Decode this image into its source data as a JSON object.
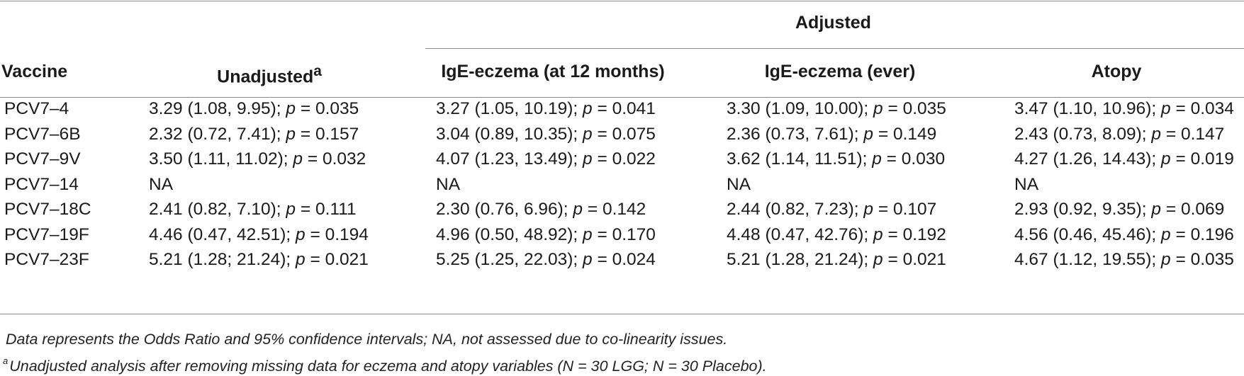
{
  "table": {
    "group_header": "Adjusted",
    "columns": {
      "vaccine": "Vaccine",
      "unadjusted": "Unadjusted",
      "unadjusted_marker": "a",
      "ige_12m": "IgE-eczema (at 12 months)",
      "ige_ever": "IgE-eczema (ever)",
      "atopy": "Atopy"
    },
    "rows": [
      {
        "vaccine": "PCV7–4",
        "unadjusted": {
          "ci": "3.29 (1.08, 9.95); ",
          "p": "p",
          "pval": " = 0.035"
        },
        "ige_12m": {
          "ci": "3.27 (1.05, 10.19); ",
          "p": "p",
          "pval": " = 0.041"
        },
        "ige_ever": {
          "ci": "3.30 (1.09, 10.00); ",
          "p": "p",
          "pval": " = 0.035"
        },
        "atopy": {
          "ci": "3.47 (1.10, 10.96); ",
          "p": "p",
          "pval": " = 0.034"
        }
      },
      {
        "vaccine": "PCV7–6B",
        "unadjusted": {
          "ci": "2.32 (0.72, 7.41); ",
          "p": "p",
          "pval": " = 0.157"
        },
        "ige_12m": {
          "ci": "3.04 (0.89, 10.35); ",
          "p": "p",
          "pval": " = 0.075"
        },
        "ige_ever": {
          "ci": "2.36 (0.73, 7.61); ",
          "p": "p",
          "pval": " = 0.149"
        },
        "atopy": {
          "ci": "2.43 (0.73, 8.09); ",
          "p": "p",
          "pval": " = 0.147"
        }
      },
      {
        "vaccine": "PCV7–9V",
        "unadjusted": {
          "ci": "3.50 (1.11, 11.02); ",
          "p": "p",
          "pval": " = 0.032"
        },
        "ige_12m": {
          "ci": "4.07 (1.23, 13.49); ",
          "p": "p",
          "pval": " = 0.022"
        },
        "ige_ever": {
          "ci": "3.62 (1.14, 11.51); ",
          "p": "p",
          "pval": " = 0.030"
        },
        "atopy": {
          "ci": "4.27 (1.26, 14.43); ",
          "p": "p",
          "pval": " = 0.019"
        }
      },
      {
        "vaccine": "PCV7–14",
        "unadjusted": {
          "ci": "NA",
          "p": "",
          "pval": ""
        },
        "ige_12m": {
          "ci": "NA",
          "p": "",
          "pval": ""
        },
        "ige_ever": {
          "ci": "NA",
          "p": "",
          "pval": ""
        },
        "atopy": {
          "ci": "NA",
          "p": "",
          "pval": ""
        }
      },
      {
        "vaccine": "PCV7–18C",
        "unadjusted": {
          "ci": "2.41 (0.82, 7.10); ",
          "p": "p",
          "pval": " = 0.111"
        },
        "ige_12m": {
          "ci": "2.30 (0.76, 6.96); ",
          "p": "p",
          "pval": " = 0.142"
        },
        "ige_ever": {
          "ci": "2.44 (0.82, 7.23); ",
          "p": "p",
          "pval": " = 0.107"
        },
        "atopy": {
          "ci": "2.93 (0.92, 9.35); ",
          "p": "p",
          "pval": " = 0.069"
        }
      },
      {
        "vaccine": "PCV7–19F",
        "unadjusted": {
          "ci": "4.46 (0.47, 42.51); ",
          "p": "p",
          "pval": " = 0.194"
        },
        "ige_12m": {
          "ci": "4.96 (0.50, 48.92); ",
          "p": "p",
          "pval": " = 0.170"
        },
        "ige_ever": {
          "ci": "4.48 (0.47, 42.76); ",
          "p": "p",
          "pval": " = 0.192"
        },
        "atopy": {
          "ci": "4.56 (0.46, 45.46); ",
          "p": "p",
          "pval": " = 0.196"
        }
      },
      {
        "vaccine": "PCV7–23F",
        "unadjusted": {
          "ci": "5.21 (1.28; 21.24); ",
          "p": "p",
          "pval": " = 0.021"
        },
        "ige_12m": {
          "ci": "5.25 (1.25, 22.03); ",
          "p": "p",
          "pval": " = 0.024"
        },
        "ige_ever": {
          "ci": "5.21 (1.28, 21.24); ",
          "p": "p",
          "pval": " = 0.021"
        },
        "atopy": {
          "ci": "4.67 (1.12, 19.55); ",
          "p": "p",
          "pval": " = 0.035"
        }
      }
    ]
  },
  "footnotes": {
    "note1": "Data represents the Odds Ratio and 95% confidence intervals; NA, not assessed due to co-linearity issues.",
    "note2_marker": "a",
    "note2": "Unadjusted analysis after removing missing data for eczema and atopy variables (N = 30 LGG; N = 30 Placebo)."
  }
}
